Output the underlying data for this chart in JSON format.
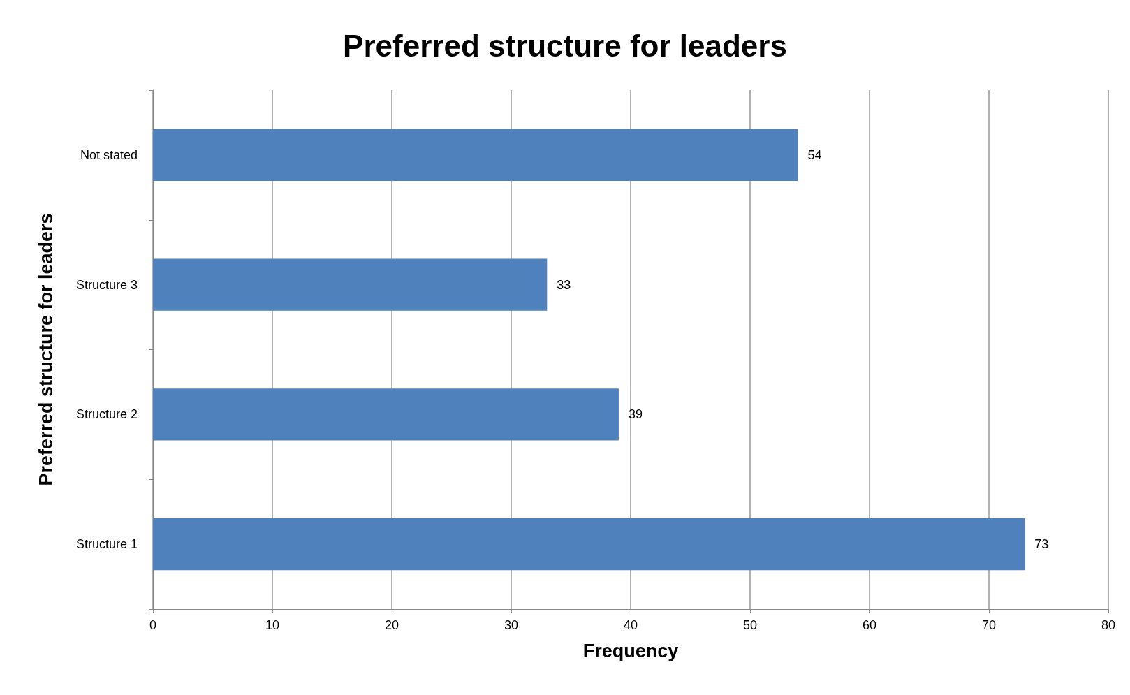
{
  "chart_data": {
    "type": "bar",
    "orientation": "horizontal",
    "title": "Preferred structure for leaders",
    "xlabel": "Frequency",
    "ylabel": "Preferred structure for leaders",
    "categories": [
      "Not stated",
      "Structure 3",
      "Structure 2",
      "Structure 1"
    ],
    "values": [
      54,
      33,
      39,
      73
    ],
    "color": "#4f81bd",
    "xlim": [
      0,
      80
    ],
    "xticks": [
      0,
      10,
      20,
      30,
      40,
      50,
      60,
      70,
      80
    ],
    "grid": "x",
    "data_labels": true
  }
}
